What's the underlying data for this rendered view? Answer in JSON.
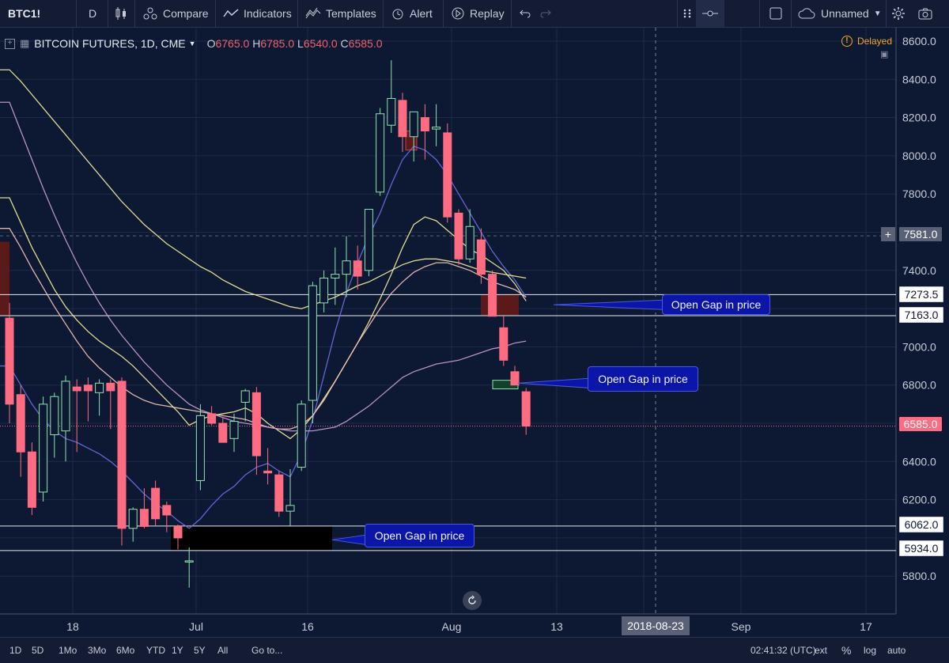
{
  "toolbar": {
    "symbol": "BTC1!",
    "interval": "D",
    "compare_label": "Compare",
    "indicators_label": "Indicators",
    "templates_label": "Templates",
    "alert_label": "Alert",
    "replay_label": "Replay",
    "layout_name": "Unnamed"
  },
  "legend": {
    "title": "BITCOIN FUTURES, 1D, CME",
    "open_label": "O",
    "open": "6765.0",
    "high_label": "H",
    "high": "6785.0",
    "low_label": "L",
    "low": "6540.0",
    "close_label": "C",
    "close": "6585.0",
    "delayed": "Delayed"
  },
  "annotations": {
    "gap1": "Open Gap in price",
    "gap2": "Open Gap in price",
    "gap3": "Open Gap in price"
  },
  "price_labels": {
    "crosshair": "7581.0",
    "gap_top": "7273.5",
    "gap_bottom": "7163.0",
    "last": "6585.0",
    "low_gap_top": "6062.0",
    "low_gap_bottom": "5934.0"
  },
  "crosshair_date": "2018-08-23",
  "bottombar": {
    "ranges": [
      "1D",
      "5D",
      "1Mo",
      "3Mo",
      "6Mo",
      "YTD",
      "1Y",
      "5Y",
      "All"
    ],
    "goto_label": "Go to...",
    "clock": "02:41:32 (UTC)",
    "ext_label": "ext",
    "percent_label": "%",
    "log_label": "log",
    "auto_label": "auto"
  },
  "colors": {
    "background": "#0d1932",
    "up": "#8ee3b0",
    "down": "#ff6b81",
    "gap_fill": "#5a1a1a",
    "annotation_bg": "#0b16a8",
    "ma_yellow": "#f5f0a0",
    "ma_blue": "#6a6ee8",
    "ma_pink": "#f7c6b8",
    "ma_violet": "#c9a0d8"
  },
  "chart_data": {
    "type": "candlestick",
    "title": "BITCOIN FUTURES, 1D, CME",
    "x_ticks": [
      "18",
      "Jul",
      "16",
      "Aug",
      "13",
      "Sep",
      "17"
    ],
    "y_ticks": [
      "8600.0",
      "8400.0",
      "8200.0",
      "8000.0",
      "7800.0",
      "7400.0",
      "7000.0",
      "6800.0",
      "6400.0",
      "6200.0",
      "5800.0"
    ],
    "ylim": [
      5620,
      8640
    ],
    "candles": [
      {
        "o": 7150,
        "h": 7230,
        "l": 6600,
        "c": 6700
      },
      {
        "o": 6750,
        "h": 6800,
        "l": 6320,
        "c": 6450
      },
      {
        "o": 6450,
        "h": 6500,
        "l": 6120,
        "c": 6160
      },
      {
        "o": 6240,
        "h": 6740,
        "l": 6190,
        "c": 6700
      },
      {
        "o": 6540,
        "h": 6760,
        "l": 6420,
        "c": 6740
      },
      {
        "o": 6560,
        "h": 6850,
        "l": 6400,
        "c": 6820
      },
      {
        "o": 6790,
        "h": 6830,
        "l": 6450,
        "c": 6770
      },
      {
        "o": 6800,
        "h": 6840,
        "l": 6610,
        "c": 6770
      },
      {
        "o": 6760,
        "h": 6830,
        "l": 6640,
        "c": 6810
      },
      {
        "o": 6810,
        "h": 6830,
        "l": 6570,
        "c": 6770
      },
      {
        "o": 6820,
        "h": 6840,
        "l": 5960,
        "c": 6050
      },
      {
        "o": 6050,
        "h": 6160,
        "l": 5980,
        "c": 6150
      },
      {
        "o": 6150,
        "h": 6260,
        "l": 6050,
        "c": 6060
      },
      {
        "o": 6260,
        "h": 6300,
        "l": 6060,
        "c": 6100
      },
      {
        "o": 6170,
        "h": 6190,
        "l": 6030,
        "c": 6120
      },
      {
        "o": 6060,
        "h": 6070,
        "l": 5940,
        "c": 6000
      },
      {
        "o": 5880,
        "h": 5950,
        "l": 5740,
        "c": 5880
      },
      {
        "o": 6300,
        "h": 6700,
        "l": 6250,
        "c": 6640
      },
      {
        "o": 6650,
        "h": 6690,
        "l": 6590,
        "c": 6600
      },
      {
        "o": 6600,
        "h": 6630,
        "l": 6500,
        "c": 6500
      },
      {
        "o": 6520,
        "h": 6650,
        "l": 6450,
        "c": 6610
      },
      {
        "o": 6710,
        "h": 6780,
        "l": 6610,
        "c": 6770
      },
      {
        "o": 6760,
        "h": 6790,
        "l": 6330,
        "c": 6430
      },
      {
        "o": 6350,
        "h": 6470,
        "l": 6280,
        "c": 6340
      },
      {
        "o": 6330,
        "h": 6350,
        "l": 6110,
        "c": 6140
      },
      {
        "o": 6140,
        "h": 6360,
        "l": 6060,
        "c": 6170
      },
      {
        "o": 6370,
        "h": 6720,
        "l": 6350,
        "c": 6700
      },
      {
        "o": 6720,
        "h": 7340,
        "l": 6600,
        "c": 7320
      },
      {
        "o": 7230,
        "h": 7400,
        "l": 7180,
        "c": 7360
      },
      {
        "o": 7360,
        "h": 7520,
        "l": 7220,
        "c": 7380
      },
      {
        "o": 7380,
        "h": 7580,
        "l": 7260,
        "c": 7450
      },
      {
        "o": 7450,
        "h": 7530,
        "l": 7300,
        "c": 7370
      },
      {
        "o": 7400,
        "h": 7720,
        "l": 7370,
        "c": 7720
      },
      {
        "o": 7810,
        "h": 8250,
        "l": 7790,
        "c": 8220
      },
      {
        "o": 8160,
        "h": 8500,
        "l": 8120,
        "c": 8300
      },
      {
        "o": 8290,
        "h": 8330,
        "l": 8020,
        "c": 8100
      },
      {
        "o": 8100,
        "h": 8230,
        "l": 7970,
        "c": 8230
      },
      {
        "o": 8200,
        "h": 8270,
        "l": 7980,
        "c": 8130
      },
      {
        "o": 8140,
        "h": 8270,
        "l": 8050,
        "c": 8150
      },
      {
        "o": 8120,
        "h": 8170,
        "l": 7650,
        "c": 7680
      },
      {
        "o": 7700,
        "h": 7720,
        "l": 7430,
        "c": 7460
      },
      {
        "o": 7460,
        "h": 7720,
        "l": 7440,
        "c": 7630
      },
      {
        "o": 7560,
        "h": 7620,
        "l": 7330,
        "c": 7380
      },
      {
        "o": 7380,
        "h": 7400,
        "l": 7160,
        "c": 7160
      },
      {
        "o": 7100,
        "h": 7160,
        "l": 6900,
        "c": 6930
      },
      {
        "o": 6870,
        "h": 6900,
        "l": 6800,
        "c": 6800
      },
      {
        "o": 6765,
        "h": 6785,
        "l": 6540,
        "c": 6585
      }
    ],
    "gaps": [
      {
        "top": 7273.5,
        "bottom": 7163.0
      },
      {
        "top": 6825,
        "bottom": 6800
      },
      {
        "top": 6062.0,
        "bottom": 5934.0
      }
    ],
    "moving_averages": [
      {
        "color": "#f5f0a0",
        "values": [
          7780,
          7650,
          7520,
          7410,
          7300,
          7210,
          7140,
          7080,
          7030,
          6990,
          6950,
          6900,
          6840,
          6780,
          6720,
          6660,
          6590,
          6620,
          6640,
          6650,
          6660,
          6680,
          6650,
          6600,
          6560,
          6520,
          6570,
          6640,
          6730,
          6820,
          6920,
          7020,
          7130,
          7250,
          7380,
          7520,
          7640,
          7680,
          7660,
          7610,
          7560,
          7510,
          7480,
          7440,
          7400,
          7330,
          7240
        ]
      },
      {
        "color": "#6a6ee8",
        "values": [
          6900,
          6800,
          6700,
          6620,
          6560,
          6520,
          6500,
          6470,
          6440,
          6400,
          6350,
          6290,
          6230,
          6180,
          6140,
          6090,
          6050,
          6100,
          6170,
          6230,
          6270,
          6330,
          6370,
          6390,
          6350,
          6320,
          6440,
          6620,
          6850,
          7080,
          7280,
          7440,
          7580,
          7700,
          7850,
          7980,
          8050,
          8030,
          7980,
          7900,
          7800,
          7700,
          7600,
          7500,
          7420,
          7350,
          7260
        ]
      },
      {
        "color": "#f7c6b8",
        "values": [
          7620,
          7520,
          7410,
          7310,
          7210,
          7120,
          7030,
          6950,
          6890,
          6840,
          6790,
          6750,
          6720,
          6700,
          6690,
          6680,
          6670,
          6660,
          6650,
          6640,
          6630,
          6620,
          6600,
          6580,
          6570,
          6570,
          6590,
          6640,
          6720,
          6820,
          6920,
          7020,
          7110,
          7200,
          7280,
          7340,
          7390,
          7420,
          7440,
          7440,
          7420,
          7400,
          7370,
          7340,
          7320,
          7300,
          7260
        ]
      },
      {
        "color": "#c9a0d8",
        "values": [
          8280,
          8130,
          7980,
          7830,
          7690,
          7560,
          7440,
          7330,
          7230,
          7140,
          7060,
          6990,
          6920,
          6860,
          6800,
          6750,
          6700,
          6670,
          6650,
          6630,
          6610,
          6600,
          6590,
          6580,
          6570,
          6560,
          6560,
          6560,
          6570,
          6580,
          6610,
          6650,
          6690,
          6740,
          6790,
          6840,
          6870,
          6890,
          6910,
          6920,
          6930,
          6950,
          6970,
          6990,
          7000,
          7020,
          7030
        ]
      },
      {
        "color": "#f5f0a0",
        "values": [
          8450,
          8390,
          8320,
          8250,
          8180,
          8110,
          8040,
          7970,
          7900,
          7830,
          7760,
          7700,
          7640,
          7590,
          7540,
          7500,
          7460,
          7420,
          7390,
          7350,
          7320,
          7290,
          7270,
          7250,
          7230,
          7210,
          7200,
          7220,
          7240,
          7260,
          7290,
          7320,
          7340,
          7370,
          7400,
          7430,
          7450,
          7460,
          7460,
          7450,
          7440,
          7420,
          7400,
          7390,
          7380,
          7370,
          7360
        ]
      }
    ]
  }
}
